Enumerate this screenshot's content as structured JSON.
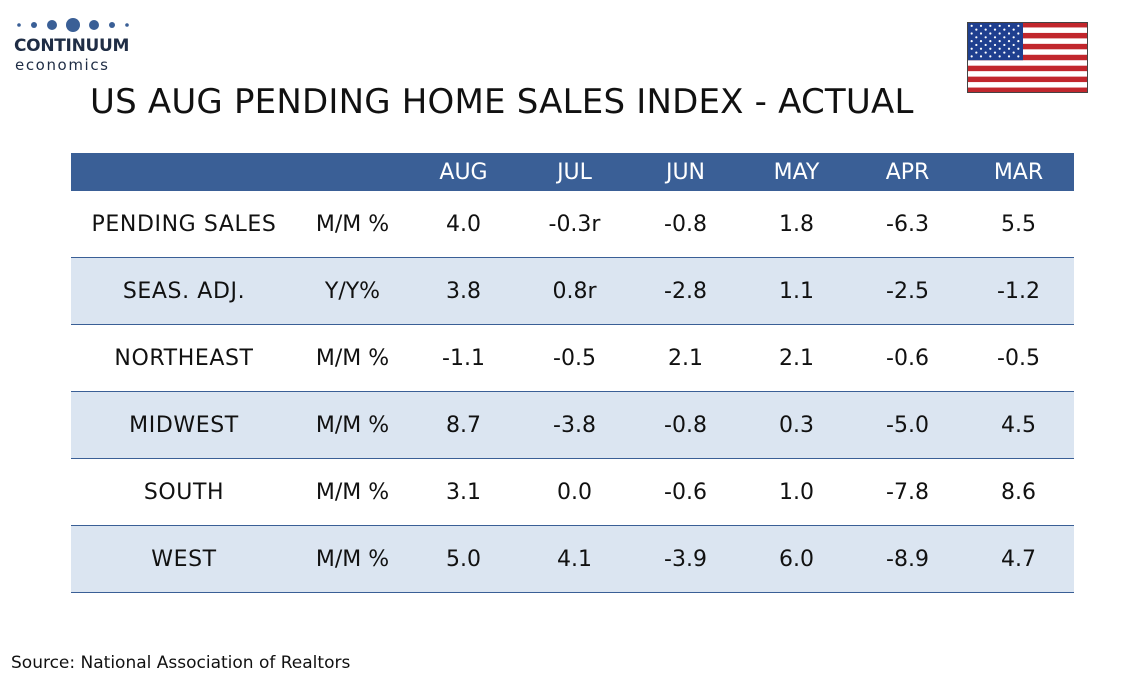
{
  "logo": {
    "name_line1": "CONTINUUM",
    "name_line2": "economics"
  },
  "title": "US AUG PENDING HOME SALES INDEX - ACTUAL",
  "flag_icon": "us-flag-icon",
  "colors": {
    "header_bg": "#3a5f96",
    "row_shade": "#dbe5f1",
    "rule": "#3a5f96",
    "flag_red": "#c1272d",
    "flag_blue": "#1f3f8f"
  },
  "chart_data": {
    "type": "table",
    "columns": [
      "",
      "",
      "AUG",
      "JUL",
      "JUN",
      "MAY",
      "APR",
      "MAR"
    ],
    "rows": [
      {
        "label": "PENDING SALES",
        "unit": "M/M %",
        "values": [
          "4.0",
          "-0.3r",
          "-0.8",
          "1.8",
          "-6.3",
          "5.5"
        ]
      },
      {
        "label": "SEAS. ADJ.",
        "unit": "Y/Y%",
        "values": [
          "3.8",
          "0.8r",
          "-2.8",
          "1.1",
          "-2.5",
          "-1.2"
        ]
      },
      {
        "label": "NORTHEAST",
        "unit": "M/M %",
        "values": [
          "-1.1",
          "-0.5",
          "2.1",
          "2.1",
          "-0.6",
          "-0.5"
        ]
      },
      {
        "label": "MIDWEST",
        "unit": "M/M %",
        "values": [
          "8.7",
          "-3.8",
          "-0.8",
          "0.3",
          "-5.0",
          "4.5"
        ]
      },
      {
        "label": "SOUTH",
        "unit": "M/M %",
        "values": [
          "3.1",
          "0.0",
          "-0.6",
          "1.0",
          "-7.8",
          "8.6"
        ]
      },
      {
        "label": "WEST",
        "unit": "M/M %",
        "values": [
          "5.0",
          "4.1",
          "-3.9",
          "6.0",
          "-8.9",
          "4.7"
        ]
      }
    ]
  },
  "source": "Source: National Association of Realtors"
}
